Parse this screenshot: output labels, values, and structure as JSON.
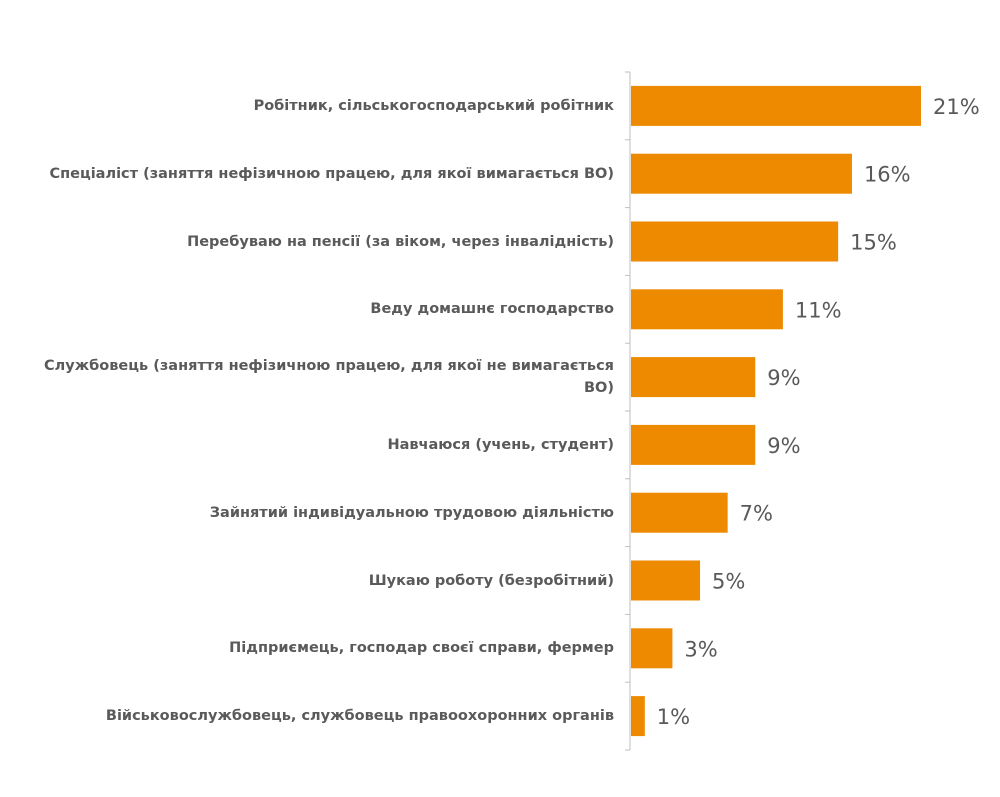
{
  "chart_data": {
    "type": "bar",
    "orientation": "horizontal",
    "categories": [
      "Робітник, сільськогосподарський робітник",
      "Спеціаліст (заняття нефізичною працею, для якої вимагається ВО)",
      "Перебуваю на пенсії (за віком, через інвалідність)",
      "Веду домашнє господарство",
      "Службовець (заняття нефізичною працею, для якої не вимагається  ВО)",
      "Навчаюся (учень, студент)",
      "Зайнятий індивідуальною трудовою діяльністю",
      "Шукаю роботу (безробітний)",
      "Підприємець, господар своєї справи, фермер",
      "Військовослужбовець, службовець правоохоронних органів"
    ],
    "values": [
      21,
      16,
      15,
      11,
      9,
      9,
      7,
      5,
      3,
      1
    ],
    "value_labels": [
      "21%",
      "16%",
      "15%",
      "11%",
      "9%",
      "9%",
      "7%",
      "5%",
      "3%",
      "1%"
    ],
    "xlim": [
      0,
      21
    ],
    "bar_color": "#EE8A00",
    "grid": false,
    "legend": "none"
  }
}
